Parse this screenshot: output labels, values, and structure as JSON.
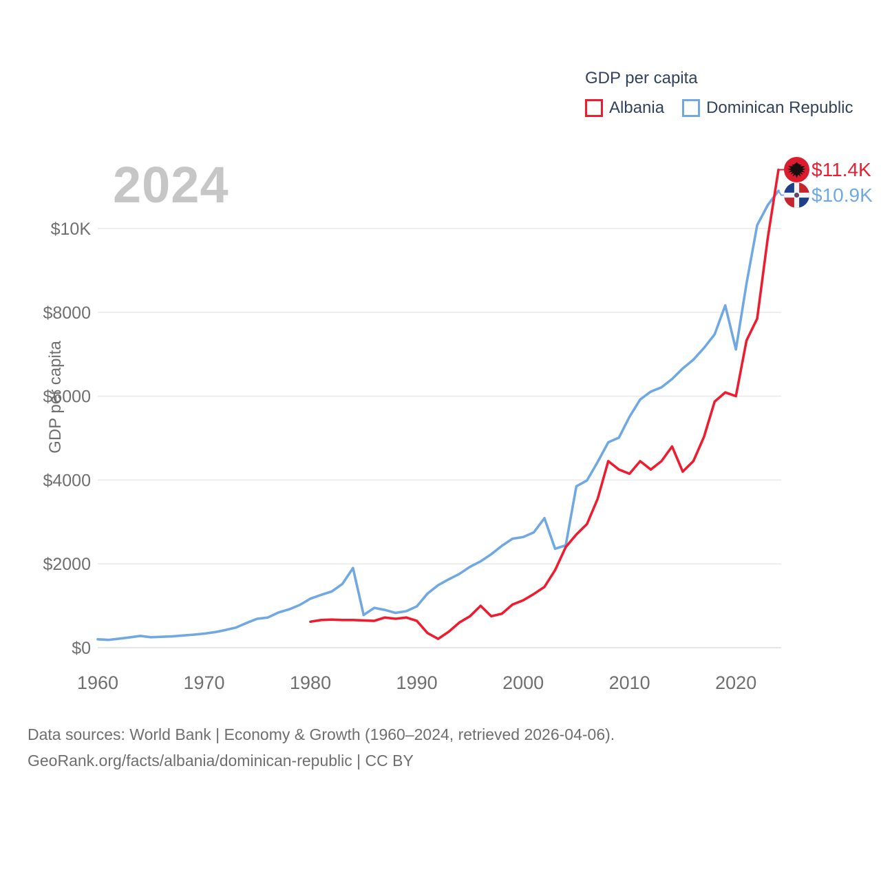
{
  "page": {
    "watermark": "2024"
  },
  "footer": {
    "line1": "Data sources: World Bank | Economy & Growth (1960–2024, retrieved 2026-04-06).",
    "line2": "GeoRank.org/facts/albania/dominican-republic | CC BY"
  },
  "chart_data": {
    "type": "line",
    "title": "GDP per capita",
    "xlabel": "",
    "ylabel": "GDP per capita",
    "grid": "horizontal",
    "legend_position": "top-right",
    "xlim": [
      1959.5,
      2025.5
    ],
    "ylim": [
      0,
      11600
    ],
    "x_ticks": [
      1960,
      1970,
      1980,
      1990,
      2000,
      2010,
      2020
    ],
    "y_ticks": [
      {
        "value": 0,
        "label": "$0"
      },
      {
        "value": 2000,
        "label": "$2000"
      },
      {
        "value": 4000,
        "label": "$4000"
      },
      {
        "value": 6000,
        "label": "$6000"
      },
      {
        "value": 8000,
        "label": "$8000"
      },
      {
        "value": 10000,
        "label": "$10K"
      }
    ],
    "series": [
      {
        "name": "Albania",
        "color": "#ed1c2e",
        "end_label": "$11.4K",
        "flag_icon": "albania-flag-icon",
        "x": [
          1980,
          1981,
          1982,
          1983,
          1984,
          1985,
          1986,
          1987,
          1988,
          1989,
          1990,
          1991,
          1992,
          1993,
          1994,
          1995,
          1996,
          1997,
          1998,
          1999,
          2000,
          2001,
          2002,
          2003,
          2004,
          2005,
          2006,
          2007,
          2008,
          2009,
          2010,
          2011,
          2012,
          2013,
          2014,
          2015,
          2016,
          2017,
          2018,
          2019,
          2020,
          2021,
          2022,
          2023,
          2024
        ],
        "values": [
          620,
          660,
          670,
          660,
          660,
          650,
          640,
          720,
          690,
          720,
          640,
          350,
          210,
          380,
          600,
          750,
          1000,
          750,
          810,
          1030,
          1130,
          1280,
          1450,
          1850,
          2400,
          2700,
          2950,
          3550,
          4450,
          4250,
          4150,
          4450,
          4250,
          4450,
          4800,
          4200,
          4450,
          5030,
          5870,
          6090,
          6000,
          7330,
          7850,
          9780,
          11400
        ]
      },
      {
        "name": "Dominican Republic",
        "color": "#6fa8e3",
        "end_label": "$10.9K",
        "flag_icon": "dominican-republic-flag-icon",
        "x": [
          1960,
          1961,
          1962,
          1963,
          1964,
          1965,
          1966,
          1967,
          1968,
          1969,
          1970,
          1971,
          1972,
          1973,
          1974,
          1975,
          1976,
          1977,
          1978,
          1979,
          1980,
          1981,
          1982,
          1983,
          1984,
          1985,
          1986,
          1987,
          1988,
          1989,
          1990,
          1991,
          1992,
          1993,
          1994,
          1995,
          1996,
          1997,
          1998,
          1999,
          2000,
          2001,
          2002,
          2003,
          2004,
          2005,
          2006,
          2007,
          2008,
          2009,
          2010,
          2011,
          2012,
          2013,
          2014,
          2015,
          2016,
          2017,
          2018,
          2019,
          2020,
          2021,
          2022,
          2023,
          2024
        ],
        "values": [
          200,
          185,
          215,
          245,
          280,
          250,
          260,
          270,
          290,
          310,
          335,
          370,
          420,
          480,
          590,
          690,
          720,
          840,
          915,
          1020,
          1170,
          1260,
          1340,
          1520,
          1900,
          780,
          950,
          900,
          830,
          870,
          985,
          1290,
          1490,
          1630,
          1760,
          1930,
          2060,
          2230,
          2430,
          2600,
          2640,
          2750,
          3090,
          2360,
          2440,
          3850,
          3990,
          4430,
          4900,
          5010,
          5510,
          5920,
          6110,
          6210,
          6410,
          6660,
          6870,
          7150,
          7475,
          8165,
          7115,
          8690,
          10080,
          10560,
          10900
        ]
      }
    ]
  }
}
